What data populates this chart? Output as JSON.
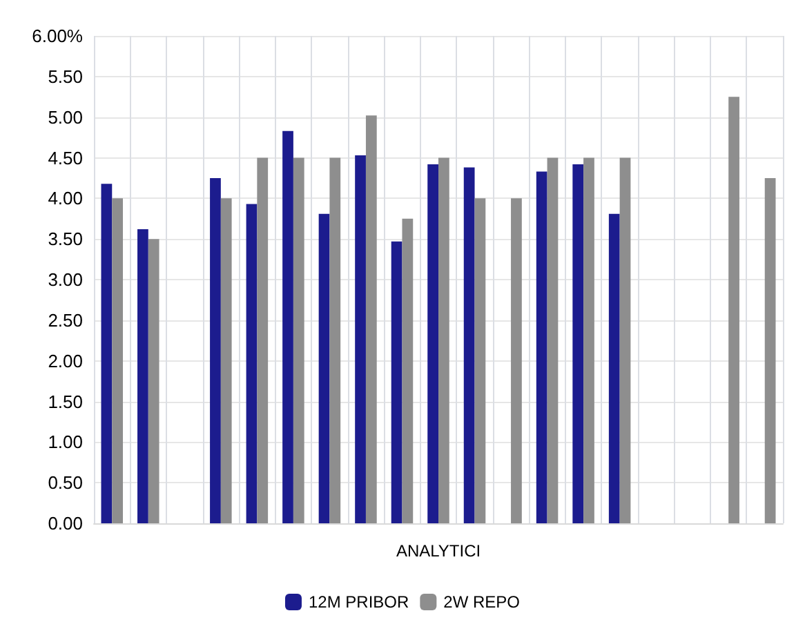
{
  "chart_data": {
    "type": "bar",
    "xlabel": "ANALYTICI",
    "categories": [
      null,
      null,
      null,
      null,
      null,
      null,
      null,
      null,
      null,
      null,
      null,
      null,
      null,
      null,
      null,
      null,
      null,
      null,
      null
    ],
    "series": [
      {
        "name": "12M PRIBOR",
        "color": "#1c1c8e",
        "values": [
          4.18,
          3.62,
          null,
          4.25,
          3.93,
          4.83,
          3.81,
          4.53,
          3.47,
          4.42,
          4.38,
          null,
          4.33,
          4.42,
          3.81,
          null,
          null,
          null,
          null
        ]
      },
      {
        "name": "2W REPO",
        "color": "#8e8e8e",
        "values": [
          4.0,
          3.5,
          null,
          4.0,
          4.5,
          4.5,
          4.5,
          5.02,
          3.75,
          4.5,
          4.0,
          4.0,
          4.5,
          4.5,
          4.5,
          null,
          null,
          5.25,
          4.25
        ]
      }
    ],
    "ylim": [
      0,
      6
    ],
    "yticks": [
      {
        "value": 0,
        "label": "0.00"
      },
      {
        "value": 0.5,
        "label": "0.50"
      },
      {
        "value": 1,
        "label": "1.00"
      },
      {
        "value": 1.5,
        "label": "1.50"
      },
      {
        "value": 2,
        "label": "2.00"
      },
      {
        "value": 2.5,
        "label": "2.50"
      },
      {
        "value": 3,
        "label": "3.00"
      },
      {
        "value": 3.5,
        "label": "3.50"
      },
      {
        "value": 4,
        "label": "4.00"
      },
      {
        "value": 4.5,
        "label": "4.50"
      },
      {
        "value": 5,
        "label": "5.00"
      },
      {
        "value": 5.5,
        "label": "5.50"
      },
      {
        "value": 6,
        "label": "6.00%"
      }
    ],
    "grid": true,
    "legend": "bottom"
  }
}
